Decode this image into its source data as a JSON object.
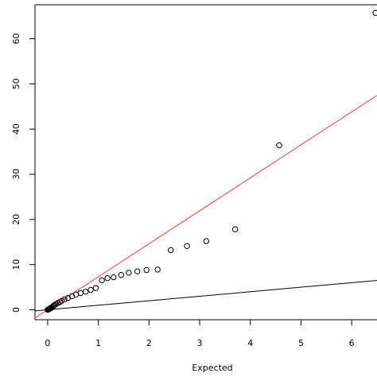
{
  "chart_data": {
    "type": "scatter",
    "title": "",
    "xlabel": "Expected",
    "ylabel": "",
    "xlim": [
      -0.25,
      6.5
    ],
    "ylim": [
      -2.2,
      67.5
    ],
    "xticks": [
      0,
      1,
      2,
      3,
      4,
      5,
      6
    ],
    "yticks": [
      0,
      10,
      20,
      30,
      40,
      50,
      60
    ],
    "grid": false,
    "legend": "none",
    "reference_lines": [
      {
        "slope": 7.3,
        "intercept": 0,
        "color": "#ff3333"
      },
      {
        "slope": 1.0,
        "intercept": 0,
        "color": "#000000"
      }
    ],
    "series": [
      {
        "marker": "open-circle",
        "color": "#000000",
        "points": [
          [
            0.0,
            0.0
          ],
          [
            0.01,
            0.05
          ],
          [
            0.02,
            0.1
          ],
          [
            0.03,
            0.15
          ],
          [
            0.04,
            0.2
          ],
          [
            0.05,
            0.3
          ],
          [
            0.06,
            0.4
          ],
          [
            0.08,
            0.5
          ],
          [
            0.1,
            0.7
          ],
          [
            0.12,
            0.9
          ],
          [
            0.14,
            1.1
          ],
          [
            0.17,
            1.3
          ],
          [
            0.2,
            1.5
          ],
          [
            0.24,
            1.7
          ],
          [
            0.28,
            2.0
          ],
          [
            0.33,
            2.3
          ],
          [
            0.4,
            2.6
          ],
          [
            0.48,
            3.0
          ],
          [
            0.56,
            3.4
          ],
          [
            0.65,
            3.7
          ],
          [
            0.75,
            4.0
          ],
          [
            0.85,
            4.4
          ],
          [
            0.95,
            4.8
          ],
          [
            1.07,
            6.5
          ],
          [
            1.18,
            7.0
          ],
          [
            1.3,
            7.2
          ],
          [
            1.45,
            7.7
          ],
          [
            1.6,
            8.2
          ],
          [
            1.77,
            8.5
          ],
          [
            1.95,
            8.8
          ],
          [
            2.17,
            8.9
          ],
          [
            2.43,
            13.2
          ],
          [
            2.75,
            14.1
          ],
          [
            3.13,
            15.2
          ],
          [
            3.7,
            17.8
          ],
          [
            4.57,
            36.4
          ],
          [
            6.47,
            65.7
          ]
        ]
      }
    ]
  }
}
